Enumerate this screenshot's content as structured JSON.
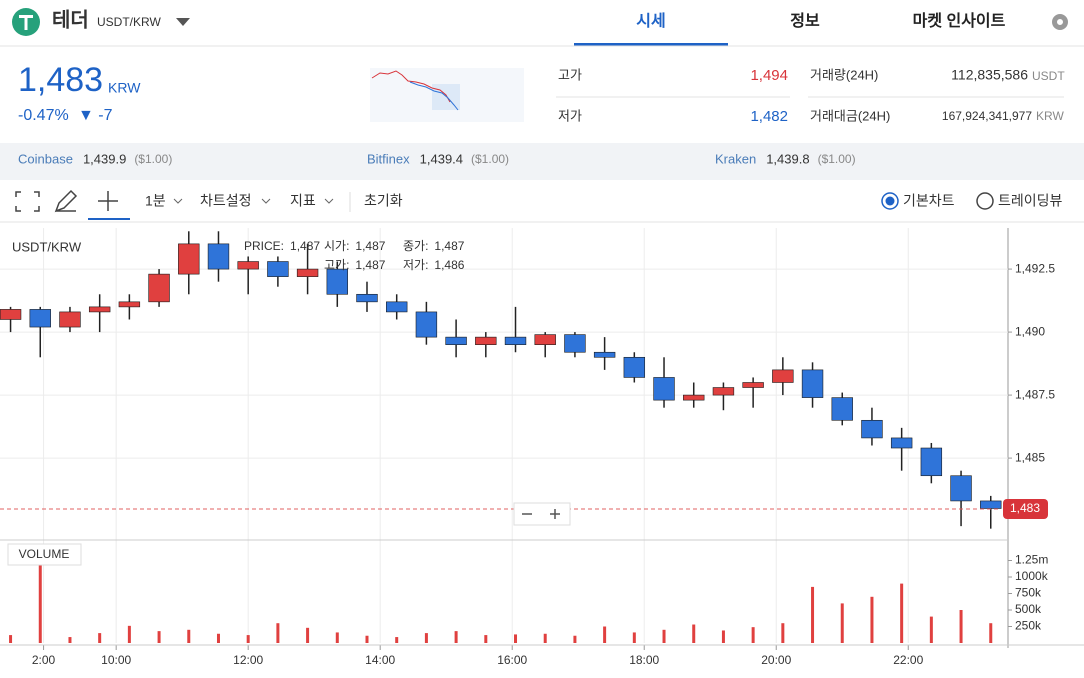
{
  "header": {
    "coin": "테더",
    "pair": "USDT/KRW",
    "tabs": [
      "시세",
      "정보",
      "마켓 인사이트"
    ],
    "active_tab": 0
  },
  "price": {
    "last": "1,483",
    "unit": "KRW",
    "change_pct": "-0.47%",
    "change": "▼ -7"
  },
  "stats": {
    "high_label": "고가",
    "high": "1,494",
    "low_label": "저가",
    "low": "1,482",
    "volume_label": "거래량(24H)",
    "volume": "112,835,586",
    "volume_unit": "USDT",
    "value_label": "거래대금(24H)",
    "value": "167,924,341,977",
    "value_unit": "KRW"
  },
  "exchanges": [
    {
      "name": "Coinbase",
      "price": "1,439.9",
      "usd": "($1.00)"
    },
    {
      "name": "Bitfinex",
      "price": "1,439.4",
      "usd": "($1.00)"
    },
    {
      "name": "Kraken",
      "price": "1,439.8",
      "usd": "($1.00)"
    }
  ],
  "toolbar": {
    "interval": "1분",
    "settings": "차트설정",
    "indicators": "지표",
    "reset": "초기화",
    "chart_types": [
      "기본차트",
      "트레이딩뷰"
    ],
    "selected_chart_type": 0
  },
  "chart_data": [
    {
      "type": "candlestick",
      "title": "USDT/KRW",
      "legend": [
        {
          "label": "PRICE:",
          "value": "1,487"
        },
        {
          "label": "시가:",
          "value": "1,487"
        },
        {
          "label": "종가:",
          "value": "1,487"
        },
        {
          "label": "고가:",
          "value": "1,487"
        },
        {
          "label": "저가:",
          "value": "1,486"
        }
      ],
      "current_price": "1,483",
      "x": [
        8.4,
        8.85,
        9.3,
        9.75,
        10.2,
        10.65,
        11.1,
        11.55,
        12.0,
        12.45,
        12.9,
        13.35,
        13.8,
        14.25,
        14.7,
        15.15,
        15.6,
        16.05,
        16.5,
        16.95,
        17.4,
        17.85,
        18.3,
        18.75,
        19.2,
        19.65,
        20.1,
        20.55,
        21.0,
        21.45,
        21.9,
        22.35,
        22.8,
        23.25
      ],
      "open": [
        1490.5,
        1490.9,
        1490.2,
        1490.8,
        1491,
        1491.2,
        1492.3,
        1493.5,
        1492.5,
        1492.8,
        1492.2,
        1492.5,
        1491.5,
        1491.2,
        1490.8,
        1489.8,
        1489.5,
        1489.8,
        1489.5,
        1489.9,
        1489.2,
        1489,
        1488.2,
        1487.3,
        1487.5,
        1487.8,
        1488,
        1488.5,
        1487.4,
        1486.5,
        1485.8,
        1485.4,
        1484.3,
        1483.3
      ],
      "high": [
        1491,
        1491,
        1491,
        1491.5,
        1491.5,
        1492.5,
        1494,
        1494,
        1493,
        1493,
        1493.5,
        1492.8,
        1492,
        1491.5,
        1491.2,
        1490.5,
        1490,
        1491,
        1490,
        1490,
        1489.8,
        1489.2,
        1489,
        1488,
        1488,
        1488.2,
        1489,
        1488.8,
        1487.6,
        1487,
        1486.2,
        1485.6,
        1484.5,
        1483.5
      ],
      "low": [
        1490,
        1489,
        1490,
        1490,
        1490.5,
        1491,
        1491.5,
        1492,
        1491.5,
        1491.8,
        1491.5,
        1491,
        1490.8,
        1490.5,
        1489.5,
        1489,
        1489,
        1489.2,
        1489,
        1489,
        1488.5,
        1488,
        1487,
        1487,
        1486.9,
        1487,
        1487.5,
        1487,
        1486.3,
        1485.5,
        1484.5,
        1484,
        1482.3,
        1482.2
      ],
      "close": [
        1490.9,
        1490.2,
        1490.8,
        1491,
        1491.2,
        1492.3,
        1493.5,
        1492.5,
        1492.8,
        1492.2,
        1492.5,
        1491.5,
        1491.2,
        1490.8,
        1489.8,
        1489.5,
        1489.8,
        1489.5,
        1489.9,
        1489.2,
        1489,
        1488.2,
        1487.3,
        1487.5,
        1487.8,
        1488,
        1488.5,
        1487.4,
        1486.5,
        1485.8,
        1485.4,
        1484.3,
        1483.3,
        1483
      ],
      "up_color": "#e0403f",
      "down_color": "#2f74d9",
      "xlim": [
        8.24,
        23.39
      ],
      "ylim": [
        1481.75,
        1494.13
      ],
      "yticks": [
        {
          "value": 1492.5,
          "label": "1,492.5"
        },
        {
          "value": 1490,
          "label": "1,490"
        },
        {
          "value": 1487.5,
          "label": "1,487.5"
        },
        {
          "value": 1485,
          "label": "1,485"
        }
      ],
      "xticks": [
        {
          "value": 8.9,
          "label": "2:00"
        },
        {
          "value": 10,
          "label": "10:00"
        },
        {
          "value": 12,
          "label": "12:00"
        },
        {
          "value": 14,
          "label": "14:00"
        },
        {
          "value": 16,
          "label": "16:00"
        },
        {
          "value": 18,
          "label": "18:00"
        },
        {
          "value": 20,
          "label": "20:00"
        },
        {
          "value": 22,
          "label": "22:00"
        }
      ],
      "grid": true
    },
    {
      "type": "bar",
      "title": "VOLUME",
      "color": "#e0403f",
      "values": [
        120000,
        1300000,
        90000,
        150000,
        260000,
        180000,
        200000,
        140000,
        120000,
        300000,
        230000,
        160000,
        110000,
        90000,
        150000,
        180000,
        120000,
        130000,
        140000,
        110000,
        250000,
        160000,
        200000,
        280000,
        190000,
        240000,
        300000,
        850000,
        600000,
        700000,
        900000,
        400000,
        500000,
        300000
      ],
      "ylim": [
        0,
        1500000
      ],
      "yticks": [
        {
          "value": 1250000,
          "label": "1.25m"
        },
        {
          "value": 1000000,
          "label": "1000k"
        },
        {
          "value": 750000,
          "label": "750k"
        },
        {
          "value": 500000,
          "label": "500k"
        },
        {
          "value": 250000,
          "label": "250k"
        }
      ]
    }
  ]
}
